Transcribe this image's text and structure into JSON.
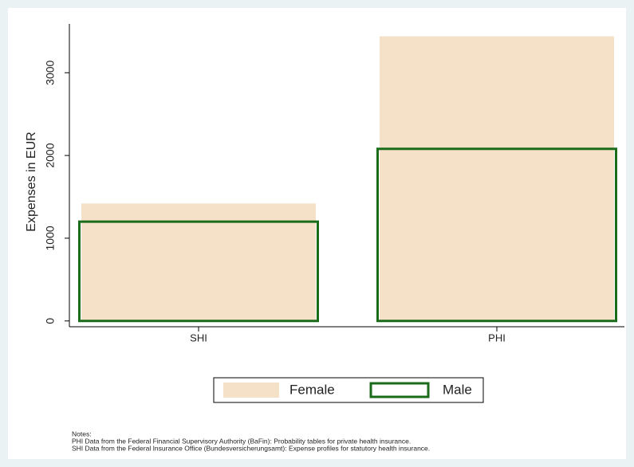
{
  "chart_data": {
    "type": "bar",
    "layout": "overlay",
    "y_label": "Expenses in EUR",
    "categories": [
      "SHI",
      "PHI"
    ],
    "series": [
      {
        "name": "Female",
        "color": "#f5e1c8",
        "style": "fill",
        "values": [
          1420,
          3440
        ]
      },
      {
        "name": "Male",
        "color": "#1a6b1a",
        "style": "outline",
        "values": [
          1200,
          2080
        ]
      }
    ],
    "ylim": [
      -70,
      3590
    ],
    "yticks": [
      0,
      1000,
      2000,
      3000
    ],
    "grid": false,
    "legend": "bottom",
    "notes": [
      "Notes:",
      "PHI Data from the Federal Financial Supervisory Authority (BaFin): Probability tables for private health insurance.",
      "SHI Data from the Federal Insurance Office (Bundesversicherungsamt): Expense profiles for statutory health insurance."
    ]
  }
}
